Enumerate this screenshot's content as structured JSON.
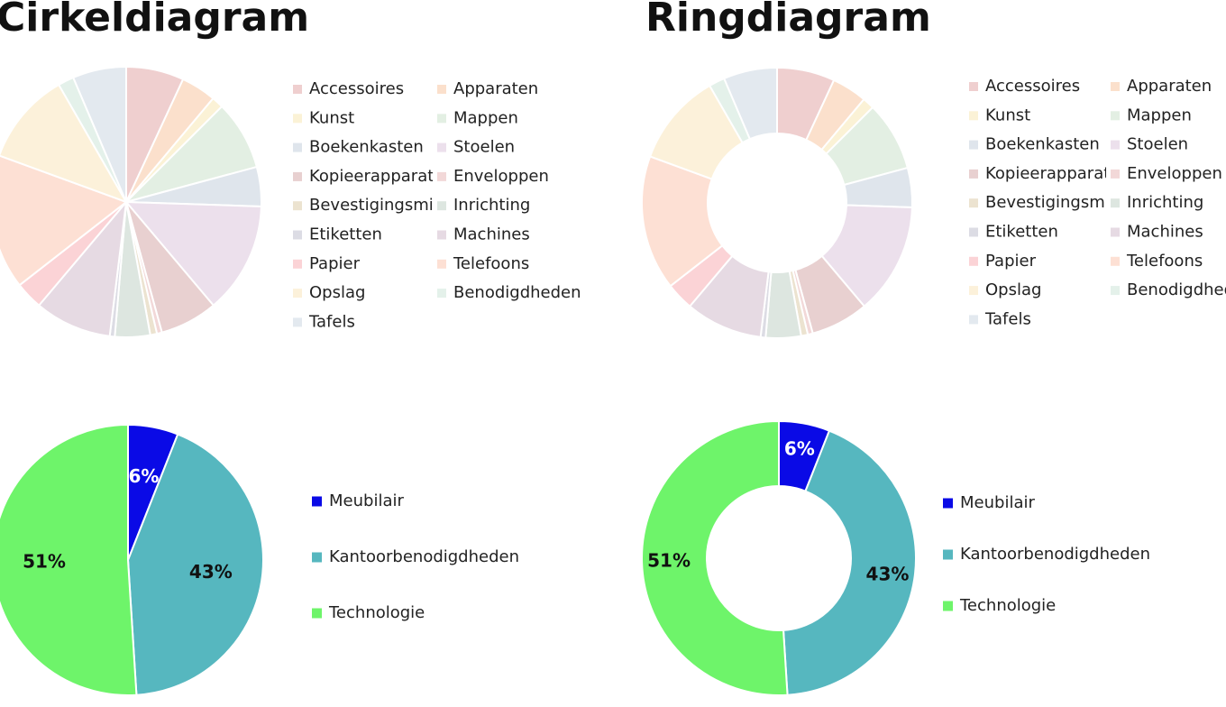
{
  "chart_data": [
    {
      "type": "pie",
      "title": "Cirkeldiagram",
      "categories": [
        "Accessoires",
        "Apparaten",
        "Kunst",
        "Mappen",
        "Boekenkasten",
        "Stoelen",
        "Kopieerapparaten",
        "Enveloppen",
        "Bevestigingsmiddelen",
        "Inrichting",
        "Etiketten",
        "Machines",
        "Papier",
        "Telefoons",
        "Opslag",
        "Benodigdheden",
        "Tafels"
      ],
      "values": [
        6.9,
        4.2,
        1.4,
        8.3,
        4.7,
        13.3,
        6.9,
        0.6,
        0.8,
        4.2,
        0.6,
        9.2,
        3.3,
        16.1,
        11.1,
        1.9,
        6.4
      ],
      "colors": [
        "#efcfcf",
        "#fbe0cc",
        "#fbf2d6",
        "#e3efe3",
        "#dfe5ec",
        "#ece0ec",
        "#e8d0d0",
        "#f2d8d8",
        "#ece3d0",
        "#dde6e0",
        "#dcdce4",
        "#e6dae3",
        "#fbd3d6",
        "#fde0d4",
        "#fcf1da",
        "#e4f1ea",
        "#e3e9ef"
      ]
    },
    {
      "type": "donut",
      "title": "Ringdiagram",
      "categories": [
        "Accessoires",
        "Apparaten",
        "Kunst",
        "Mappen",
        "Boekenkasten",
        "Stoelen",
        "Kopieerapparaten",
        "Enveloppen",
        "Bevestigingsmiddelen",
        "Inrichting",
        "Etiketten",
        "Machines",
        "Papier",
        "Telefoons",
        "Opslag",
        "Benodigdheden",
        "Tafels"
      ],
      "values": [
        6.9,
        4.2,
        1.4,
        8.3,
        4.7,
        13.3,
        6.9,
        0.6,
        0.8,
        4.2,
        0.6,
        9.2,
        3.3,
        16.1,
        11.1,
        1.9,
        6.4
      ],
      "colors": [
        "#efcfcf",
        "#fbe0cc",
        "#fbf2d6",
        "#e3efe3",
        "#dfe5ec",
        "#ece0ec",
        "#e8d0d0",
        "#f2d8d8",
        "#ece3d0",
        "#dde6e0",
        "#dcdce4",
        "#e6dae3",
        "#fbd3d6",
        "#fde0d4",
        "#fcf1da",
        "#e4f1ea",
        "#e3e9ef"
      ]
    },
    {
      "type": "pie",
      "categories": [
        "Meubilair",
        "Kantoorbenodigdheden",
        "Technologie"
      ],
      "values": [
        6,
        43,
        51
      ],
      "value_labels": [
        "6%",
        "43%",
        "51%"
      ],
      "colors": [
        "#0a0ae6",
        "#56b7bf",
        "#6ef46a"
      ]
    },
    {
      "type": "donut",
      "categories": [
        "Meubilair",
        "Kantoorbenodigdheden",
        "Technologie"
      ],
      "values": [
        6,
        43,
        51
      ],
      "value_labels": [
        "6%",
        "43%",
        "51%"
      ],
      "colors": [
        "#0a0ae6",
        "#56b7bf",
        "#6ef46a"
      ]
    }
  ]
}
